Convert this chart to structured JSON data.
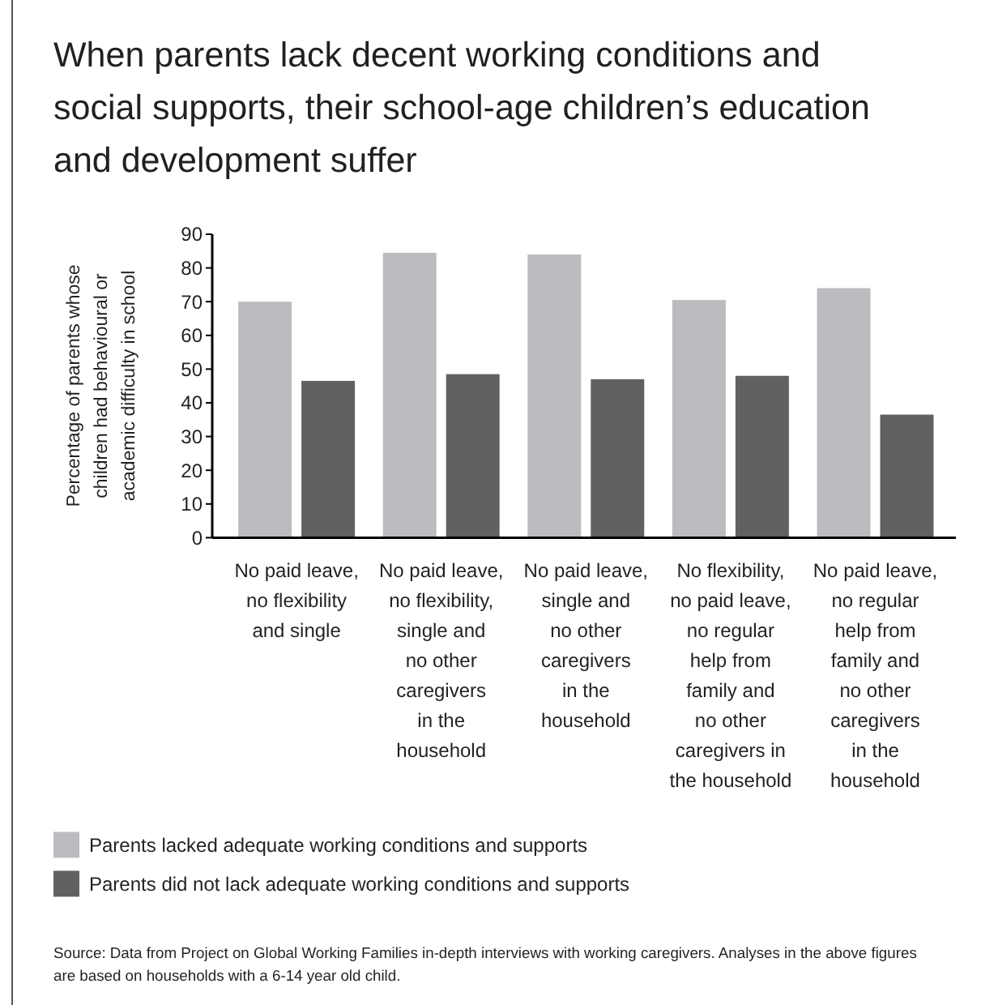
{
  "chart_data": {
    "type": "bar",
    "title": "When parents lack decent working conditions and\nsocial supports, their school-age children’s education\nand development suffer",
    "ylabel": "Percentage of parents whose\nchildren had behavioural or\nacademic difficulty in school",
    "categories": [
      "No paid leave,\nno flexibility\nand single",
      "No paid leave,\nno flexibility,\nsingle and\nno other\ncaregivers\nin the\nhousehold",
      "No paid leave,\nsingle and\nno other\ncaregivers\nin the\nhousehold",
      "No flexibility,\nno paid leave,\nno regular\nhelp from\nfamily and\nno other\ncaregivers in\nthe household",
      "No paid leave,\nno regular\nhelp from\nfamily and\nno other\ncaregivers\nin the\nhousehold"
    ],
    "series": [
      {
        "name": "Parents lacked adequate working conditions and supports",
        "color": "#bbbcc0",
        "values": [
          70,
          84.5,
          84,
          70.5,
          74
        ]
      },
      {
        "name": "Parents did not lack adequate working conditions and supports",
        "color": "#616163",
        "values": [
          46.5,
          48.5,
          47,
          48,
          36.5
        ]
      }
    ],
    "ylim": [
      0,
      90
    ],
    "yticks": [
      0,
      10,
      20,
      30,
      40,
      50,
      60,
      70,
      80,
      90
    ],
    "legend": "bottom",
    "annotations": [
      "Source: Data from Project on Global Working Families in-depth interviews with working caregivers. Analyses in the above figures\nare based on households with a 6-14 year old child."
    ]
  }
}
